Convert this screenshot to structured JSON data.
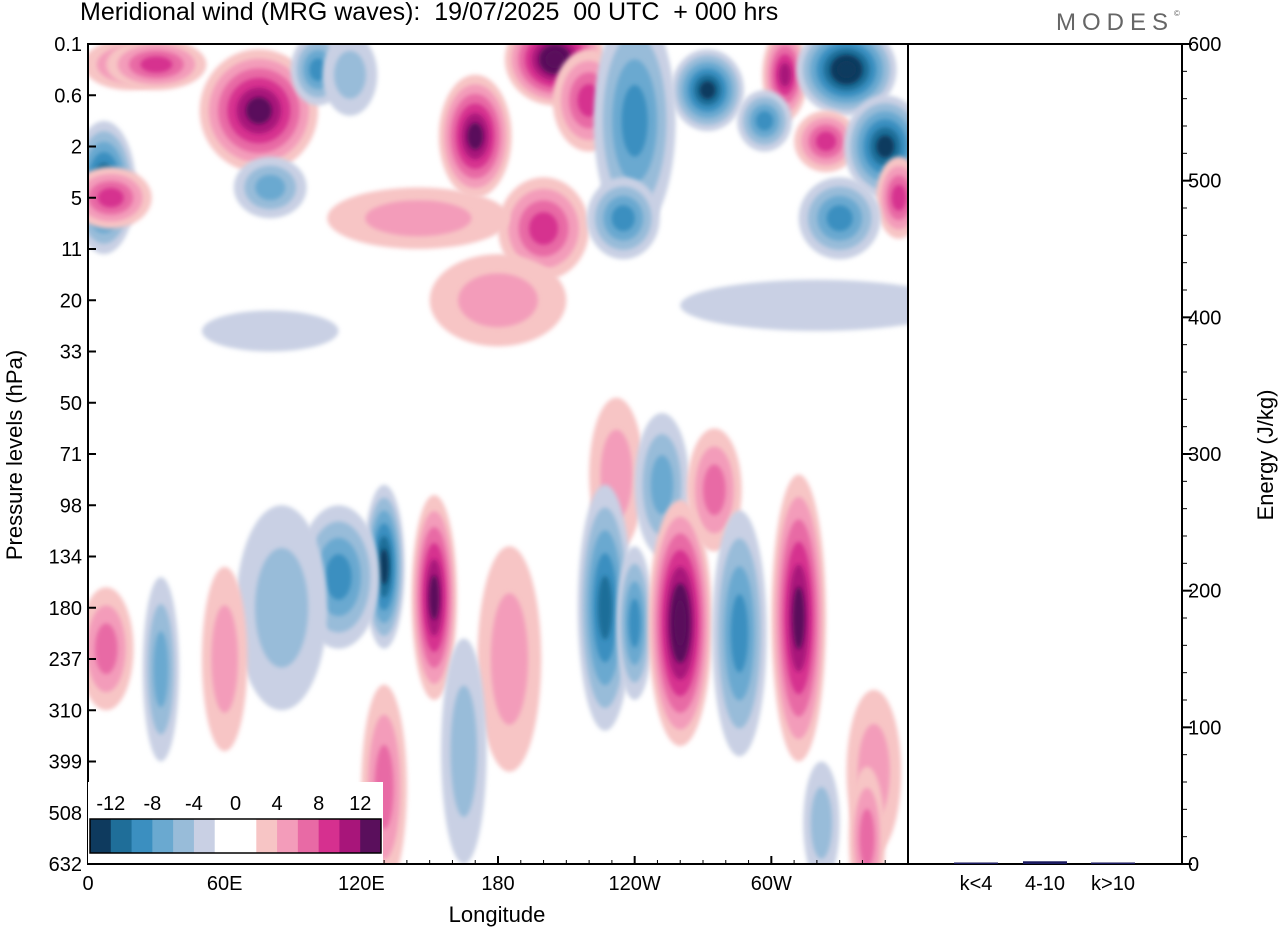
{
  "title": "Meridional wind (MRG waves):  19/07/2025  00 UTC  + 000 hrs",
  "logo": "MODES",
  "logo_mark": "©",
  "chart_data": [
    {
      "type": "heatmap",
      "title": "Meridional wind (MRG waves)",
      "xlabel": "Longitude",
      "ylabel": "Pressure levels (hPa)",
      "x_ticks": [
        "0",
        "60E",
        "120E",
        "180",
        "120W",
        "60W"
      ],
      "x_tick_values": [
        0,
        60,
        120,
        180,
        240,
        300
      ],
      "xlim": [
        0,
        360
      ],
      "y_ticks": [
        "0.1",
        "0.6",
        "2",
        "5",
        "11",
        "20",
        "33",
        "50",
        "71",
        "98",
        "134",
        "180",
        "237",
        "310",
        "399",
        "508",
        "632"
      ],
      "colorbar": {
        "labels": [
          "-12",
          "-8",
          "-4",
          "0",
          "4",
          "8",
          "12"
        ],
        "levels": [
          -14,
          -12,
          -10,
          -8,
          -6,
          -4,
          -2,
          2,
          4,
          6,
          8,
          10,
          12,
          14
        ],
        "colors": [
          "#0e3a5e",
          "#1f6e99",
          "#3b8fc0",
          "#6aa9d0",
          "#98bcd9",
          "#c9d0e4",
          "#ffffff",
          "#ffffff",
          "#f7c5c5",
          "#f39cba",
          "#e86aa5",
          "#d6308f",
          "#a8157a",
          "#5a0f5c"
        ]
      },
      "features": [
        {
          "lon": 7,
          "level": 2.8,
          "value": -13,
          "w": 14,
          "h": 1.3
        },
        {
          "lon": 18,
          "level": 0.4,
          "value": 7,
          "w": 20,
          "h": 0.5
        },
        {
          "lon": 30,
          "level": 0.4,
          "value": 9,
          "w": 22,
          "h": 0.5
        },
        {
          "lon": 75,
          "level": 1.3,
          "value": 12,
          "w": 26,
          "h": 1.2
        },
        {
          "lon": 101,
          "level": 0.5,
          "value": -8,
          "w": 12,
          "h": 0.7
        },
        {
          "lon": 115,
          "level": 0.6,
          "value": -4,
          "w": 12,
          "h": 0.8
        },
        {
          "lon": 10,
          "level": 3.0,
          "value": 9,
          "w": 18,
          "h": 0.6
        },
        {
          "lon": 80,
          "level": 2.8,
          "value": -7,
          "w": 16,
          "h": 0.6
        },
        {
          "lon": 170,
          "level": 1.8,
          "value": 12,
          "w": 16,
          "h": 1.2
        },
        {
          "lon": 205,
          "level": 0.3,
          "value": 14,
          "w": 22,
          "h": 0.9
        },
        {
          "lon": 220,
          "level": 1.1,
          "value": 8,
          "w": 16,
          "h": 1.0
        },
        {
          "lon": 240,
          "level": 1.5,
          "value": -8,
          "w": 18,
          "h": 2.2
        },
        {
          "lon": 272,
          "level": 0.9,
          "value": -13,
          "w": 16,
          "h": 0.8
        },
        {
          "lon": 306,
          "level": 0.6,
          "value": 10,
          "w": 10,
          "h": 0.9
        },
        {
          "lon": 333,
          "level": 0.5,
          "value": -14,
          "w": 22,
          "h": 0.9
        },
        {
          "lon": 297,
          "level": 1.5,
          "value": -8,
          "w": 12,
          "h": 0.6
        },
        {
          "lon": 324,
          "level": 1.9,
          "value": 9,
          "w": 14,
          "h": 0.6
        },
        {
          "lon": 350,
          "level": 2.0,
          "value": -13,
          "w": 18,
          "h": 1.0
        },
        {
          "lon": 356,
          "level": 3.0,
          "value": 8,
          "w": 10,
          "h": 0.8
        },
        {
          "lon": 200,
          "level": 3.6,
          "value": 8,
          "w": 20,
          "h": 1.0
        },
        {
          "lon": 235,
          "level": 3.4,
          "value": -8,
          "w": 16,
          "h": 0.8
        },
        {
          "lon": 330,
          "level": 3.4,
          "value": -8,
          "w": 18,
          "h": 0.8
        },
        {
          "lon": 145,
          "level": 3.4,
          "value": 5,
          "w": 40,
          "h": 0.6
        },
        {
          "lon": 180,
          "level": 5.0,
          "value": 4,
          "w": 30,
          "h": 0.9
        },
        {
          "lon": 320,
          "level": 5.1,
          "value": -3,
          "w": 60,
          "h": 0.5
        },
        {
          "lon": 80,
          "level": 5.6,
          "value": -3,
          "w": 30,
          "h": 0.4
        },
        {
          "lon": 232,
          "level": 8.4,
          "value": 5,
          "w": 12,
          "h": 1.5
        },
        {
          "lon": 252,
          "level": 8.6,
          "value": -6,
          "w": 12,
          "h": 1.4
        },
        {
          "lon": 275,
          "level": 8.7,
          "value": 6,
          "w": 12,
          "h": 1.2
        },
        {
          "lon": 130,
          "level": 10.2,
          "value": -13,
          "w": 9,
          "h": 1.6
        },
        {
          "lon": 110,
          "level": 10.4,
          "value": -9,
          "w": 18,
          "h": 1.4
        },
        {
          "lon": 85,
          "level": 11.0,
          "value": -5,
          "w": 20,
          "h": 2.0
        },
        {
          "lon": 152,
          "level": 10.8,
          "value": 12,
          "w": 10,
          "h": 2.0
        },
        {
          "lon": 227,
          "level": 11.0,
          "value": -11,
          "w": 12,
          "h": 2.4
        },
        {
          "lon": 240,
          "level": 11.3,
          "value": -8,
          "w": 8,
          "h": 1.5
        },
        {
          "lon": 260,
          "level": 11.3,
          "value": 14,
          "w": 14,
          "h": 2.4
        },
        {
          "lon": 286,
          "level": 11.5,
          "value": -9,
          "w": 12,
          "h": 2.4
        },
        {
          "lon": 312,
          "level": 11.2,
          "value": 12,
          "w": 12,
          "h": 2.8
        },
        {
          "lon": 8,
          "level": 11.8,
          "value": 6,
          "w": 12,
          "h": 1.2
        },
        {
          "lon": 32,
          "level": 12.2,
          "value": -7,
          "w": 8,
          "h": 1.8
        },
        {
          "lon": 60,
          "level": 12.0,
          "value": 5,
          "w": 10,
          "h": 1.8
        },
        {
          "lon": 185,
          "level": 12.0,
          "value": 4,
          "w": 14,
          "h": 2.2
        },
        {
          "lon": 130,
          "level": 14.5,
          "value": 6,
          "w": 10,
          "h": 2.0
        },
        {
          "lon": 165,
          "level": 13.8,
          "value": -5,
          "w": 10,
          "h": 2.2
        },
        {
          "lon": 345,
          "level": 14.2,
          "value": 4,
          "w": 12,
          "h": 1.6
        },
        {
          "lon": 342,
          "level": 15.5,
          "value": 7,
          "w": 8,
          "h": 1.4
        },
        {
          "lon": 322,
          "level": 15.2,
          "value": -5,
          "w": 8,
          "h": 1.2
        }
      ]
    },
    {
      "type": "bar",
      "categories": [
        "k<4",
        "4-10",
        "k>10"
      ],
      "values": [
        0.3,
        2.0,
        0.2
      ],
      "ylabel": "Energy (J/kg)",
      "ylim": [
        0,
        600
      ],
      "y_ticks": [
        0,
        100,
        200,
        300,
        400,
        500,
        600
      ]
    }
  ]
}
